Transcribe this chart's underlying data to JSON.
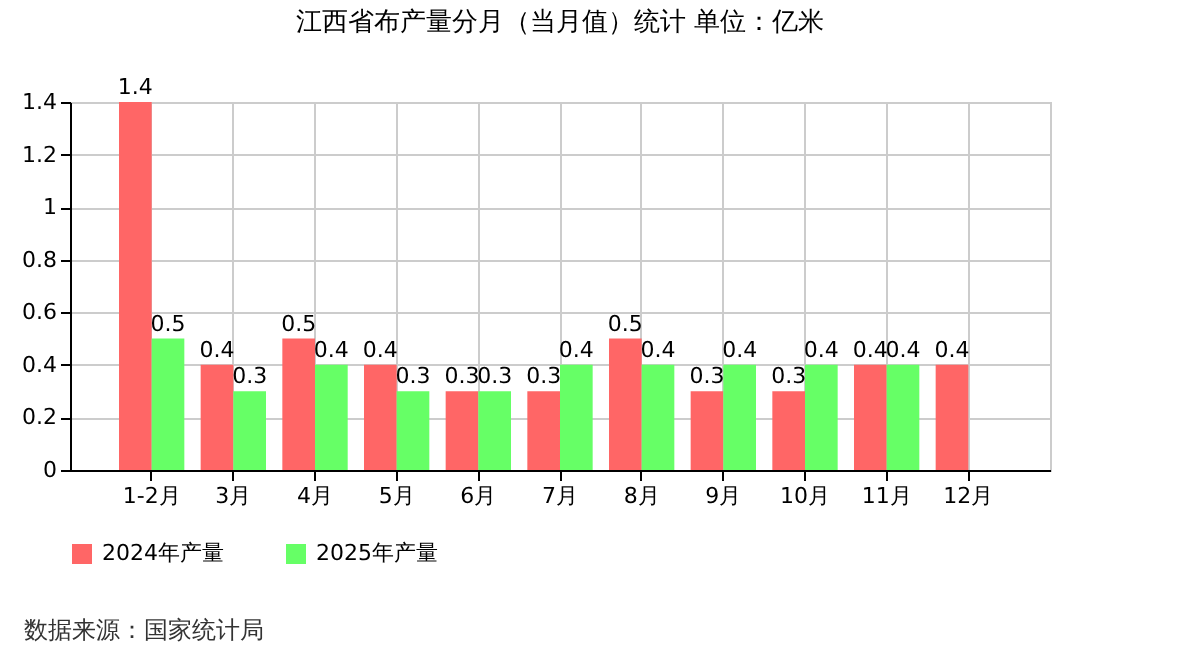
{
  "chart_data": {
    "type": "bar",
    "title": "江西省布产量分月（当月值）统计 单位：亿米",
    "categories": [
      "1-2月",
      "3月",
      "4月",
      "5月",
      "6月",
      "7月",
      "8月",
      "9月",
      "10月",
      "11月",
      "12月"
    ],
    "series": [
      {
        "name": "2024年产量",
        "color": "#ff6666",
        "values": [
          1.4,
          0.4,
          0.5,
          0.4,
          0.3,
          0.3,
          0.5,
          0.3,
          0.3,
          0.4,
          0.4
        ]
      },
      {
        "name": "2025年产量",
        "color": "#66ff66",
        "values": [
          0.5,
          0.3,
          0.4,
          0.3,
          0.3,
          0.4,
          0.4,
          0.4,
          0.4,
          0.4,
          null
        ]
      }
    ],
    "ylim": [
      0,
      1.4
    ],
    "yticks": [
      0,
      0.2,
      0.4,
      0.6,
      0.8,
      1,
      1.2,
      1.4
    ],
    "grid": true,
    "legend": "bottom",
    "data_labels": true,
    "annotations": [
      "数据来源：国家统计局"
    ]
  }
}
